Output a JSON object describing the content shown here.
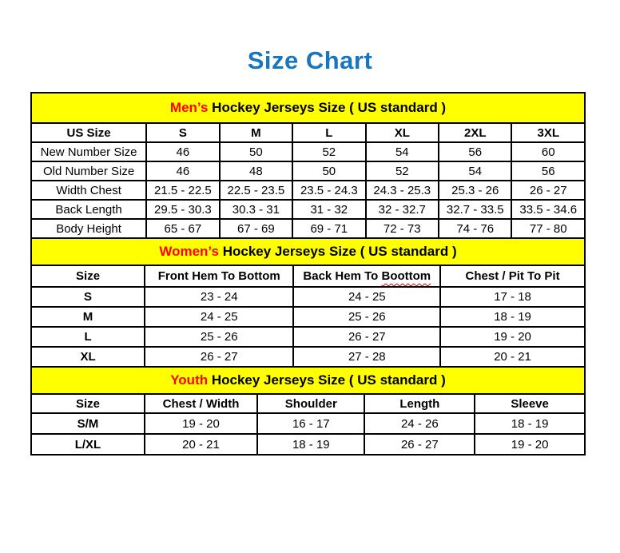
{
  "page": {
    "title": "Size Chart"
  },
  "colors": {
    "title_blue": "#1776BE",
    "banner_yellow": "#FFFF00",
    "highlight_red": "#FF0000",
    "border_black": "#000000"
  },
  "sections": [
    {
      "id": "mens",
      "banner": {
        "highlight": "Men’s",
        "rest": " Hockey Jerseys Size ( US standard )"
      },
      "columns": [
        "US Size",
        "S",
        "M",
        "L",
        "XL",
        "2XL",
        "3XL"
      ],
      "rows": [
        {
          "label": "New Number Size",
          "values": [
            "46",
            "50",
            "52",
            "54",
            "56",
            "60"
          ]
        },
        {
          "label": "Old Number Size",
          "values": [
            "46",
            "48",
            "50",
            "52",
            "54",
            "56"
          ]
        },
        {
          "label": "Width Chest",
          "values": [
            "21.5 - 22.5",
            "22.5 - 23.5",
            "23.5 - 24.3",
            "24.3 - 25.3",
            "25.3 - 26",
            "26 - 27"
          ]
        },
        {
          "label": "Back Length",
          "values": [
            "29.5 - 30.3",
            "30.3 - 31",
            "31 - 32",
            "32 - 32.7",
            "32.7 - 33.5",
            "33.5 - 34.6"
          ]
        },
        {
          "label": "Body Height",
          "values": [
            "65 - 67",
            "67 - 69",
            "69 - 71",
            "72 - 73",
            "74 - 76",
            "77 - 80"
          ]
        }
      ]
    },
    {
      "id": "womens",
      "banner": {
        "highlight": "Women’s",
        "rest": " Hockey Jerseys Size ( US standard )"
      },
      "columns": [
        "Size",
        "Front Hem To Bottom",
        "Back Hem To Boottom",
        "Chest / Pit To Pit"
      ],
      "spellcheck": {
        "column_index": 2,
        "prefix": "Back Hem To ",
        "word": "Boottom"
      },
      "rows": [
        {
          "label": "S",
          "values": [
            "23 - 24",
            "24 - 25",
            "17 - 18"
          ]
        },
        {
          "label": "M",
          "values": [
            "24 - 25",
            "25 - 26",
            "18 - 19"
          ]
        },
        {
          "label": "L",
          "values": [
            "25 - 26",
            "26 - 27",
            "19 - 20"
          ]
        },
        {
          "label": "XL",
          "values": [
            "26 - 27",
            "27 - 28",
            "20 - 21"
          ]
        }
      ]
    },
    {
      "id": "youth",
      "banner": {
        "highlight": "Youth",
        "rest": " Hockey Jerseys Size ( US standard )"
      },
      "columns": [
        "Size",
        "Chest / Width",
        "Shoulder",
        "Length",
        "Sleeve"
      ],
      "rows": [
        {
          "label": "S/M",
          "values": [
            "19 - 20",
            "16 - 17",
            "24 - 26",
            "18 - 19"
          ]
        },
        {
          "label": "L/XL",
          "values": [
            "20 - 21",
            "18 - 19",
            "26 - 27",
            "19 - 20"
          ]
        }
      ]
    }
  ]
}
